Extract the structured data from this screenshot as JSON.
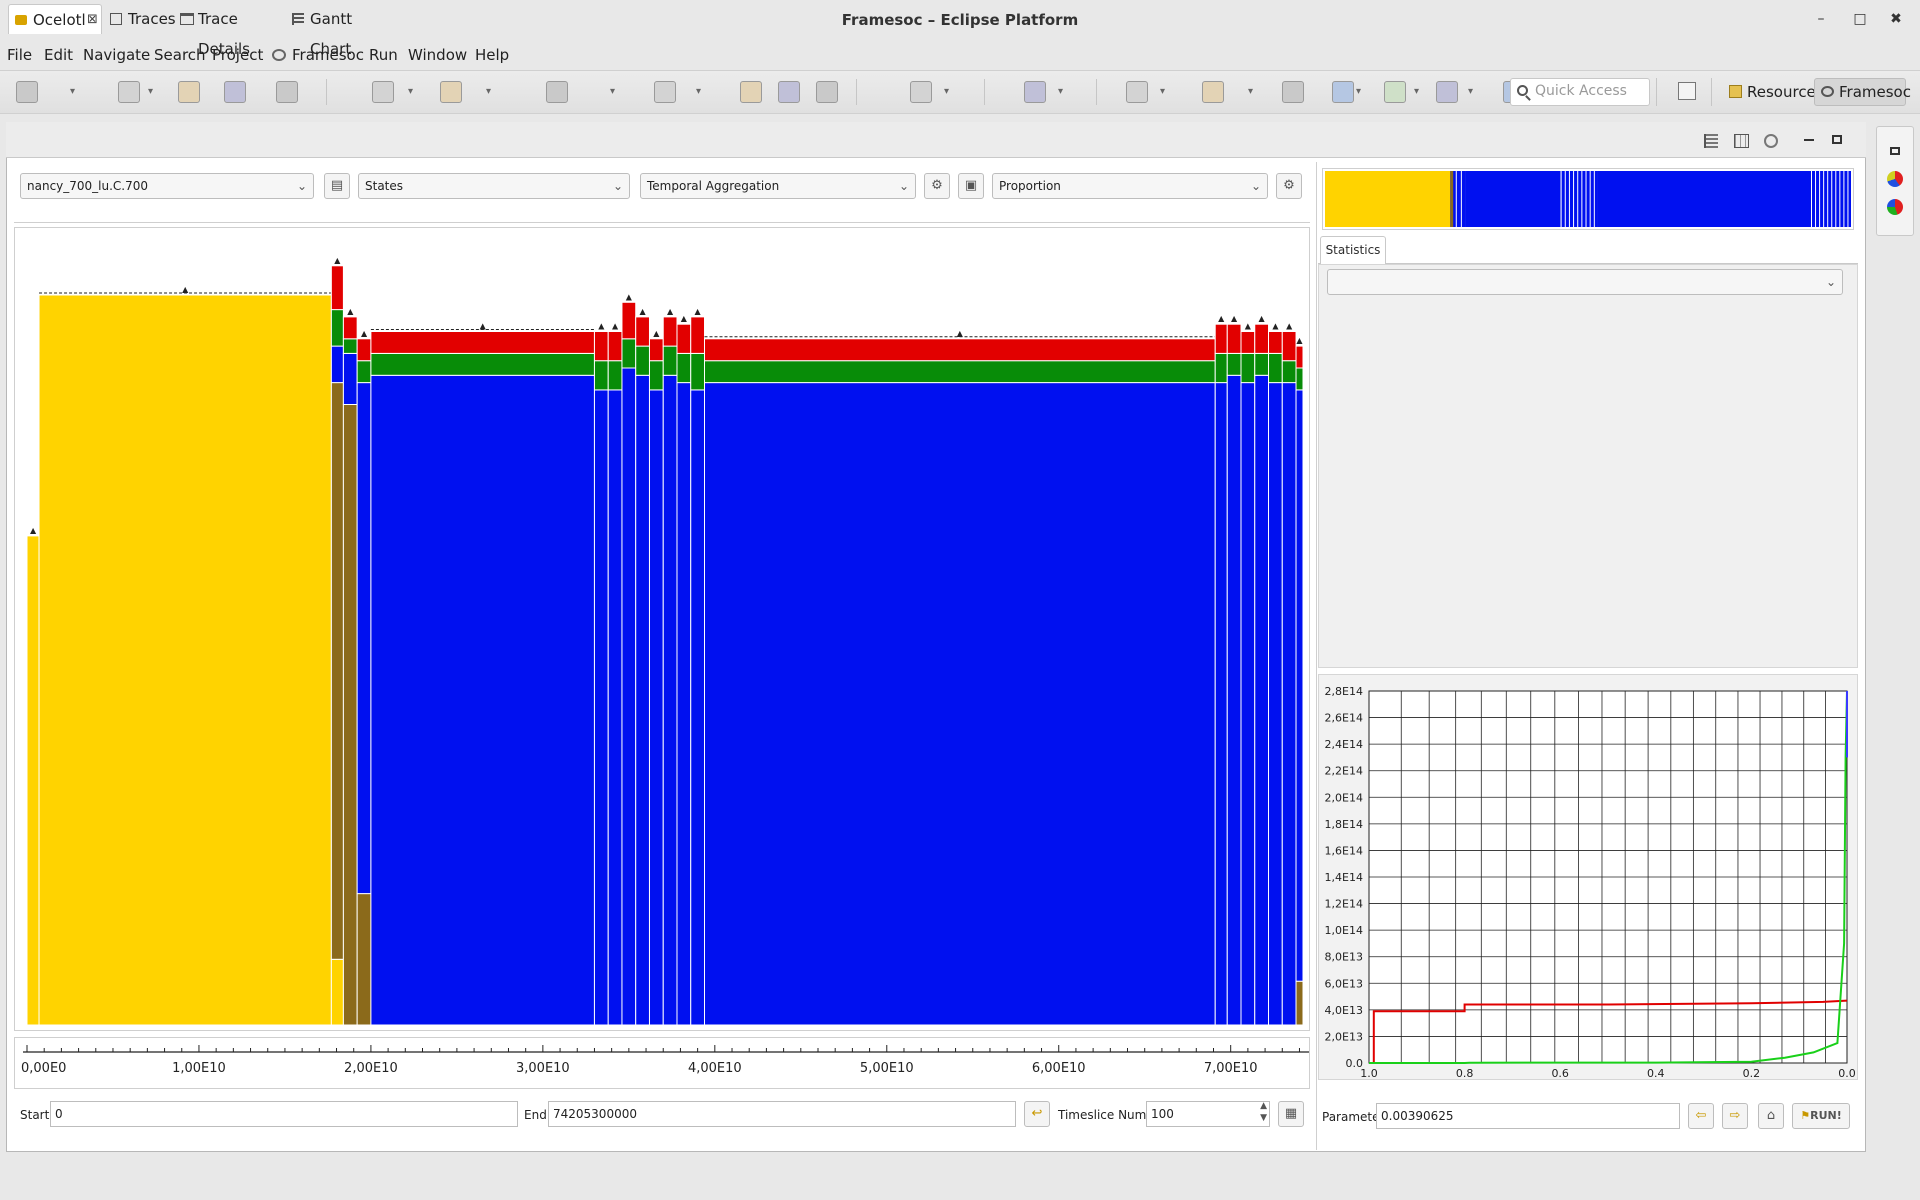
{
  "window": {
    "title": "Framesoc – Eclipse Platform",
    "min": "–",
    "max": "□",
    "close": "✖"
  },
  "menu": [
    "File",
    "Edit",
    "Navigate",
    "Search",
    "Project",
    "Framesoc",
    "Run",
    "Window",
    "Help"
  ],
  "toolbar": {
    "quick_access_placeholder": "Quick Access"
  },
  "perspectives": [
    {
      "label": "Resource"
    },
    {
      "label": "Framesoc",
      "active": true
    }
  ],
  "tabs": [
    {
      "label": "Ocelotl",
      "active": true,
      "icon": "ocelotl-icon"
    },
    {
      "label": "Traces",
      "icon": "traces-icon"
    },
    {
      "label": "Trace Details",
      "icon": "table-icon"
    },
    {
      "label": "Gantt Chart",
      "icon": "gantt-icon"
    }
  ],
  "controls": {
    "trace": "nancy_700_lu.C.700",
    "metric": "States",
    "aggregation": "Temporal Aggregation",
    "visualization": "Proportion"
  },
  "range": {
    "start_label": "Start",
    "start": "0",
    "end_label": "End",
    "end": "74205300000",
    "timeslice_label": "Timeslice Number",
    "timeslice": "100"
  },
  "colors": {
    "yellow": "#ffd300",
    "brown": "#8b6a1b",
    "blue": "#0010f0",
    "green": "#088c08",
    "red": "#e20000",
    "white": "#ffffff"
  },
  "chart_data": {
    "type": "area",
    "title": "",
    "xlabel": "",
    "ylabel": "",
    "xlim": [
      0,
      74205300000
    ],
    "xticks": [
      "0,00E0",
      "1,00E10",
      "2,00E10",
      "3,00E10",
      "4,00E10",
      "5,00E10",
      "6,00E10",
      "7,00E10"
    ],
    "xtick_values": [
      0,
      10000000000,
      20000000000,
      30000000000,
      40000000000,
      50000000000,
      60000000000,
      70000000000
    ],
    "note_order_bottom_to_top": [
      "yellow",
      "brown",
      "blue",
      "green",
      "red"
    ],
    "aggregates": [
      {
        "x0": 0,
        "x1": 700000000,
        "layers": {
          "yellow": 0.67
        }
      },
      {
        "x0": 700000000,
        "x1": 17700000000,
        "layers": {
          "yellow": 1.0
        }
      },
      {
        "x0": 17700000000,
        "x1": 18400000000,
        "layers": {
          "brown": 0.79,
          "yellow": 0.09,
          "blue": 0.05,
          "green": 0.05,
          "red": 0.06
        }
      },
      {
        "x0": 18400000000,
        "x1": 19200000000,
        "layers": {
          "brown": 0.85,
          "blue": 0.07,
          "green": 0.02,
          "red": 0.03
        }
      },
      {
        "x0": 19200000000,
        "x1": 20000000000,
        "layers": {
          "brown": 0.18,
          "blue": 0.7,
          "green": 0.03,
          "red": 0.03
        }
      },
      {
        "x0": 20000000000,
        "x1": 33000000000,
        "layers": {
          "blue": 0.89,
          "green": 0.03,
          "red": 0.03
        }
      },
      {
        "x0": 33000000000,
        "x1": 33800000000,
        "layers": {
          "blue": 0.87,
          "green": 0.04,
          "red": 0.04
        }
      },
      {
        "x0": 33800000000,
        "x1": 34600000000,
        "layers": {
          "blue": 0.87,
          "green": 0.04,
          "red": 0.04
        }
      },
      {
        "x0": 34600000000,
        "x1": 35400000000,
        "layers": {
          "blue": 0.9,
          "green": 0.04,
          "red": 0.05
        }
      },
      {
        "x0": 35400000000,
        "x1": 36200000000,
        "layers": {
          "blue": 0.89,
          "green": 0.04,
          "red": 0.04
        }
      },
      {
        "x0": 36200000000,
        "x1": 37000000000,
        "layers": {
          "blue": 0.87,
          "green": 0.04,
          "red": 0.03
        }
      },
      {
        "x0": 37000000000,
        "x1": 37800000000,
        "layers": {
          "blue": 0.89,
          "green": 0.04,
          "red": 0.04
        }
      },
      {
        "x0": 37800000000,
        "x1": 38600000000,
        "layers": {
          "blue": 0.88,
          "green": 0.04,
          "red": 0.04
        }
      },
      {
        "x0": 38600000000,
        "x1": 39400000000,
        "layers": {
          "blue": 0.87,
          "green": 0.05,
          "red": 0.05
        }
      },
      {
        "x0": 39400000000,
        "x1": 69100000000,
        "layers": {
          "blue": 0.88,
          "green": 0.03,
          "red": 0.03
        }
      },
      {
        "x0": 69100000000,
        "x1": 69800000000,
        "layers": {
          "blue": 0.88,
          "green": 0.04,
          "red": 0.04
        }
      },
      {
        "x0": 69800000000,
        "x1": 70600000000,
        "layers": {
          "blue": 0.89,
          "green": 0.03,
          "red": 0.04
        }
      },
      {
        "x0": 70600000000,
        "x1": 71400000000,
        "layers": {
          "blue": 0.88,
          "green": 0.04,
          "red": 0.03
        }
      },
      {
        "x0": 71400000000,
        "x1": 72200000000,
        "layers": {
          "blue": 0.89,
          "green": 0.03,
          "red": 0.04
        }
      },
      {
        "x0": 72200000000,
        "x1": 73000000000,
        "layers": {
          "blue": 0.88,
          "green": 0.04,
          "red": 0.03
        }
      },
      {
        "x0": 73000000000,
        "x1": 73800000000,
        "layers": {
          "blue": 0.88,
          "green": 0.03,
          "red": 0.04
        }
      },
      {
        "x0": 73800000000,
        "x1": 74205300000,
        "layers": {
          "brown": 0.06,
          "blue": 0.81,
          "green": 0.03,
          "red": 0.03
        }
      }
    ]
  },
  "overview_data": {
    "x0": 0,
    "x1": 100,
    "bands": [
      {
        "from": 0,
        "to": 23.8,
        "c": "yellow"
      },
      {
        "from": 23.8,
        "to": 26.7,
        "c": "blue-mix"
      },
      {
        "from": 26.7,
        "to": 44.7,
        "c": "blue"
      },
      {
        "from": 44.7,
        "to": 51.8,
        "c": "blue-mix"
      },
      {
        "from": 51.8,
        "to": 92.3,
        "c": "blue"
      },
      {
        "from": 92.3,
        "to": 100,
        "c": "blue-mix"
      }
    ]
  },
  "statistics": {
    "tab": "Statistics",
    "combo_value": ""
  },
  "quality_chart": {
    "type": "line",
    "yticks": [
      "2,8E14",
      "2,6E14",
      "2,4E14",
      "2,2E14",
      "2,0E14",
      "1,8E14",
      "1,6E14",
      "1,4E14",
      "1,2E14",
      "1,0E14",
      "8,0E13",
      "6,0E13",
      "4,0E13",
      "2,0E13",
      "0.0"
    ],
    "ytick_values": [
      280000000000000.0,
      260000000000000.0,
      240000000000000.0,
      220000000000000.0,
      200000000000000.0,
      180000000000000.0,
      160000000000000.0,
      140000000000000.0,
      120000000000000.0,
      100000000000000.0,
      80000000000000.0,
      60000000000000.0,
      40000000000000.0,
      20000000000000.0,
      0
    ],
    "xticks": [
      "1.0",
      "0.8",
      "0.6",
      "0.4",
      "0.2",
      "0.0"
    ],
    "xtick_values": [
      1.0,
      0.8,
      0.6,
      0.4,
      0.2,
      0.0
    ],
    "ylim": [
      0,
      280000000000000.0
    ],
    "xlim": [
      1.0,
      0.0
    ],
    "series": [
      {
        "color": "#e00000",
        "points": [
          [
            1.0,
            0
          ],
          [
            0.99,
            0
          ],
          [
            0.99,
            39000000000000.0
          ],
          [
            0.8,
            39000000000000.0
          ],
          [
            0.8,
            44000000000000.0
          ],
          [
            0.5,
            44000000000000.0
          ],
          [
            0.2,
            45000000000000.0
          ],
          [
            0.05,
            46000000000000.0
          ],
          [
            0.0,
            47000000000000.0
          ]
        ]
      },
      {
        "color": "#19d019",
        "points": [
          [
            1.0,
            0
          ],
          [
            0.8,
            0
          ],
          [
            0.79,
            200000000000.0
          ],
          [
            0.4,
            300000000000.0
          ],
          [
            0.2,
            1000000000000.0
          ],
          [
            0.13,
            4000000000000.0
          ],
          [
            0.07,
            8000000000000.0
          ],
          [
            0.02,
            15000000000000.0
          ],
          [
            0.006,
            90000000000000.0
          ],
          [
            0.003,
            230000000000000.0
          ],
          [
            0.0,
            280000000000000.0
          ]
        ]
      },
      {
        "color": "#3a3aff",
        "points": [
          [
            0.0,
            280000000000000.0
          ],
          [
            0.0,
            230000000000000.0
          ]
        ]
      }
    ]
  },
  "parameter": {
    "label": "Parameter",
    "value": "0.00390625",
    "run": "RUN!"
  }
}
